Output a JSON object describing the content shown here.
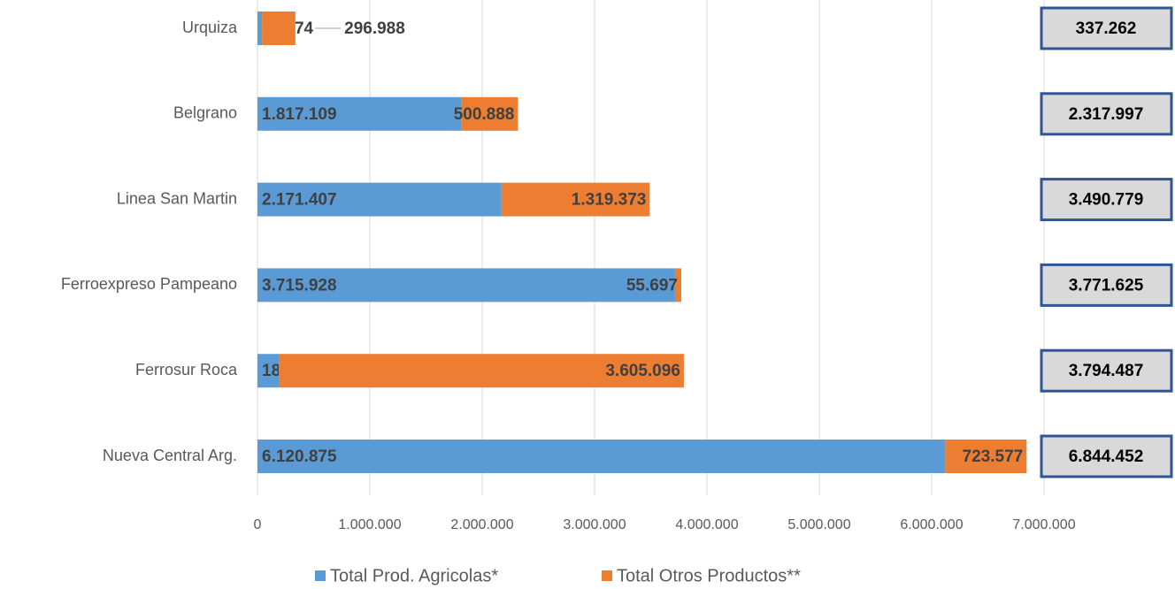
{
  "chart_data": {
    "type": "stacked-bar-horizontal",
    "categories": [
      "Urquiza",
      "Belgrano",
      "Linea San Martin",
      "Ferroexpreso Pampeano",
      "Ferrosur Roca",
      "Nueva Central Arg."
    ],
    "series": [
      {
        "name": "Total Prod. Agricolas*",
        "color": "#5b9bd5",
        "values": [
          40274,
          1817109,
          2171407,
          3715928,
          189391,
          6120875
        ],
        "value_labels": [
          "40.274",
          "1.817.109",
          "2.171.407",
          "3.715.928",
          "189.391",
          "6.120.875"
        ]
      },
      {
        "name": "Total Otros Productos**",
        "color": "#ed7d31",
        "values": [
          296988,
          500888,
          1319373,
          55697,
          3605096,
          723577
        ],
        "value_labels": [
          "296.988",
          "500.888",
          "1.319.373",
          "55.697",
          "3.605.096",
          "723.577"
        ]
      }
    ],
    "totals": {
      "values": [
        337262,
        2317997,
        3490779,
        3771625,
        3794487,
        6844452
      ],
      "value_labels": [
        "337.262",
        "2.317.997",
        "3.490.779",
        "3.771.625",
        "3.794.487",
        "6.844.452"
      ]
    },
    "xlim": [
      0,
      7000000
    ],
    "xticks": [
      0,
      {
        "value": 1000000,
        "label": "1.000.000"
      },
      {
        "value": 2000000,
        "label": "2.000.000"
      },
      {
        "value": 3000000,
        "label": "3.000.000"
      },
      {
        "value": 4000000,
        "label": "4.000.000"
      },
      {
        "value": 5000000,
        "label": "5.000.000"
      },
      {
        "value": 6000000,
        "label": "6.000.000"
      },
      {
        "value": 7000000,
        "label": "7.000.000"
      }
    ],
    "grid": true,
    "legend": "bottom"
  }
}
